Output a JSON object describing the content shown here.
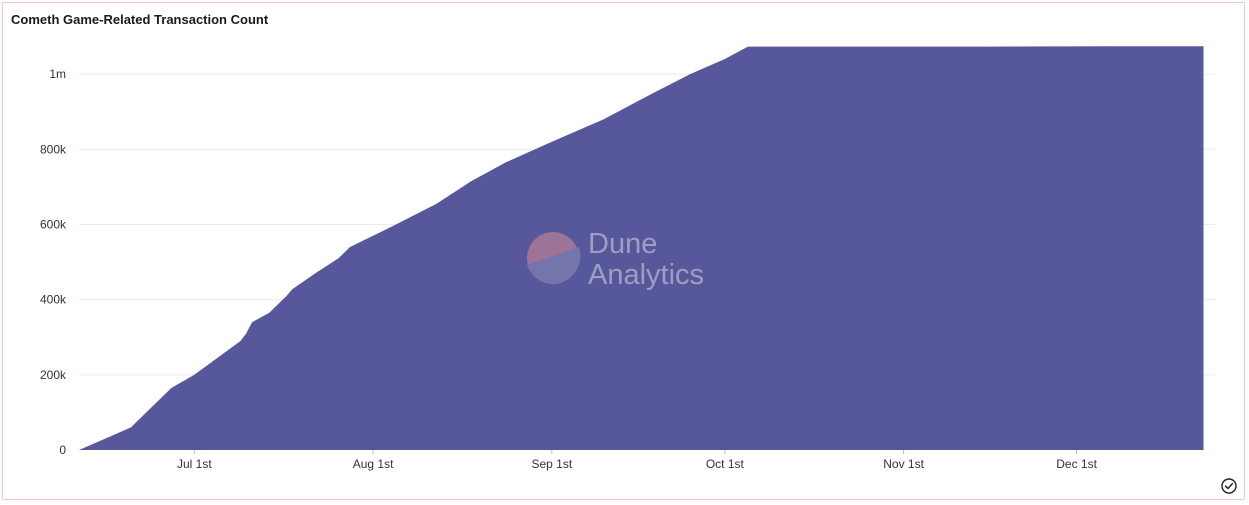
{
  "title": "Cometh Game-Related Transaction Count",
  "watermark": {
    "line1": "Dune",
    "line2": "Analytics"
  },
  "status_icon": "check-circle-icon",
  "colors": {
    "area": "#57579B",
    "grid": "#ececec",
    "watermark_logo_top": "#d98a96",
    "watermark_logo_bottom": "#8f8fbf"
  },
  "chart_data": {
    "type": "area",
    "title": "Cometh Game-Related Transaction Count",
    "xlabel": "",
    "ylabel": "",
    "xlim": [
      "2021-06-11",
      "2021-12-25"
    ],
    "ylim": [
      0,
      1080000
    ],
    "grid": true,
    "legend": "none",
    "x_ticks": [
      {
        "date": "2021-07-01",
        "label": "Jul 1st"
      },
      {
        "date": "2021-08-01",
        "label": "Aug 1st"
      },
      {
        "date": "2021-09-01",
        "label": "Sep 1st"
      },
      {
        "date": "2021-10-01",
        "label": "Oct 1st"
      },
      {
        "date": "2021-11-01",
        "label": "Nov 1st"
      },
      {
        "date": "2021-12-01",
        "label": "Dec 1st"
      }
    ],
    "y_ticks": [
      {
        "value": 0,
        "label": "0"
      },
      {
        "value": 200000,
        "label": "200k"
      },
      {
        "value": 400000,
        "label": "400k"
      },
      {
        "value": 600000,
        "label": "600k"
      },
      {
        "value": 800000,
        "label": "800k"
      },
      {
        "value": 1000000,
        "label": "1m"
      }
    ],
    "points": [
      {
        "x": "2021-06-11",
        "y": 0
      },
      {
        "x": "2021-06-14",
        "y": 20000
      },
      {
        "x": "2021-06-17",
        "y": 40000
      },
      {
        "x": "2021-06-20",
        "y": 60000
      },
      {
        "x": "2021-06-24",
        "y": 120000
      },
      {
        "x": "2021-06-27",
        "y": 165000
      },
      {
        "x": "2021-07-01",
        "y": 200000
      },
      {
        "x": "2021-07-05",
        "y": 245000
      },
      {
        "x": "2021-07-09",
        "y": 290000
      },
      {
        "x": "2021-07-10",
        "y": 310000
      },
      {
        "x": "2021-07-11",
        "y": 340000
      },
      {
        "x": "2021-07-14",
        "y": 365000
      },
      {
        "x": "2021-07-17",
        "y": 410000
      },
      {
        "x": "2021-07-18",
        "y": 428000
      },
      {
        "x": "2021-07-22",
        "y": 470000
      },
      {
        "x": "2021-07-26",
        "y": 510000
      },
      {
        "x": "2021-07-27",
        "y": 525000
      },
      {
        "x": "2021-07-28",
        "y": 540000
      },
      {
        "x": "2021-08-05",
        "y": 600000
      },
      {
        "x": "2021-08-12",
        "y": 655000
      },
      {
        "x": "2021-08-18",
        "y": 715000
      },
      {
        "x": "2021-08-24",
        "y": 765000
      },
      {
        "x": "2021-09-01",
        "y": 820000
      },
      {
        "x": "2021-09-10",
        "y": 880000
      },
      {
        "x": "2021-09-18",
        "y": 945000
      },
      {
        "x": "2021-09-25",
        "y": 1000000
      },
      {
        "x": "2021-10-01",
        "y": 1040000
      },
      {
        "x": "2021-10-05",
        "y": 1073000
      },
      {
        "x": "2021-11-15",
        "y": 1073000
      },
      {
        "x": "2021-12-08",
        "y": 1074000
      },
      {
        "x": "2021-12-23",
        "y": 1074000
      }
    ]
  }
}
